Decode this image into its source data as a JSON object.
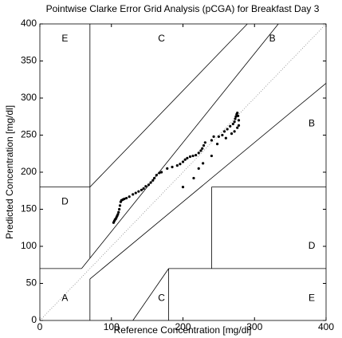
{
  "chart_data": {
    "type": "scatter",
    "title": "Pointwise Clarke Error Grid Analysis (pCGA) for Breakfast Day 3",
    "x_label": "Reference Concentration [mg/dl]",
    "y_label": "Predicted Concentration [mg/dl]",
    "xlim": [
      0,
      400
    ],
    "ylim": [
      0,
      400
    ],
    "xticks": [
      0,
      100,
      200,
      300,
      400
    ],
    "yticks": [
      0,
      50,
      100,
      150,
      200,
      250,
      300,
      350,
      400
    ],
    "color": "#000000",
    "zone_lines": [
      [
        0,
        70,
        58.33,
        70
      ],
      [
        58.33,
        70,
        333.33,
        400
      ],
      [
        70,
        84,
        70,
        400
      ],
      [
        0,
        180,
        70,
        180
      ],
      [
        70,
        180,
        290,
        400
      ],
      [
        70,
        0,
        70,
        56
      ],
      [
        70,
        56,
        400,
        320
      ],
      [
        180,
        0,
        180,
        70
      ],
      [
        180,
        70,
        400,
        70
      ],
      [
        240,
        70,
        240,
        180
      ],
      [
        240,
        180,
        400,
        180
      ],
      [
        130,
        0,
        180,
        70
      ]
    ],
    "annotations": [
      {
        "text": "E",
        "x": 35,
        "y": 380
      },
      {
        "text": "C",
        "x": 170,
        "y": 380
      },
      {
        "text": "B",
        "x": 325,
        "y": 380
      },
      {
        "text": "D",
        "x": 35,
        "y": 160
      },
      {
        "text": "B",
        "x": 380,
        "y": 265
      },
      {
        "text": "D",
        "x": 380,
        "y": 100
      },
      {
        "text": "A",
        "x": 35,
        "y": 30
      },
      {
        "text": "C",
        "x": 170,
        "y": 30
      },
      {
        "text": "E",
        "x": 380,
        "y": 30
      }
    ],
    "x": [
      103,
      104,
      105,
      106,
      107,
      108,
      109,
      110,
      111,
      112,
      113,
      114,
      116,
      118,
      121,
      125,
      130,
      134,
      138,
      142,
      145,
      148,
      152,
      155,
      158,
      160,
      163,
      167,
      170,
      178,
      185,
      192,
      196,
      200,
      203,
      206,
      210,
      214,
      218,
      222,
      225,
      227,
      229,
      231,
      240,
      243,
      250,
      255,
      258,
      262,
      266,
      270,
      272,
      273,
      274,
      275,
      276,
      277,
      278,
      278,
      276,
      272,
      268,
      260,
      248,
      240,
      228,
      222,
      215,
      200
    ],
    "values": [
      132,
      134,
      136,
      137,
      139,
      141,
      143,
      146,
      150,
      155,
      160,
      162,
      163,
      164,
      165,
      167,
      170,
      172,
      174,
      176,
      178,
      181,
      183,
      186,
      189,
      192,
      196,
      199,
      200,
      205,
      207,
      209,
      211,
      214,
      217,
      219,
      221,
      222,
      223,
      226,
      229,
      232,
      236,
      240,
      243,
      248,
      248,
      250,
      255,
      258,
      262,
      265,
      268,
      272,
      275,
      278,
      280,
      276,
      270,
      263,
      260,
      255,
      252,
      246,
      238,
      222,
      212,
      205,
      192,
      180
    ]
  }
}
